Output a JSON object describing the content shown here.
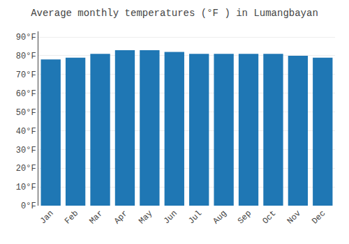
{
  "chart_data": {
    "type": "bar",
    "title": "Average monthly temperatures (°F ) in Lumangbayan",
    "categories": [
      "Jan",
      "Feb",
      "Mar",
      "Apr",
      "May",
      "Jun",
      "Jul",
      "Aug",
      "Sep",
      "Oct",
      "Nov",
      "Dec"
    ],
    "values": [
      78,
      79,
      81,
      83,
      83,
      82,
      81,
      81,
      81,
      81,
      80,
      79
    ],
    "ylim": [
      0,
      93
    ],
    "yticks": [
      {
        "value": 0,
        "label": "0°F"
      },
      {
        "value": 10,
        "label": "10°F"
      },
      {
        "value": 20,
        "label": "20°F"
      },
      {
        "value": 30,
        "label": "30°F"
      },
      {
        "value": 40,
        "label": "40°F"
      },
      {
        "value": 50,
        "label": "50°F"
      },
      {
        "value": 60,
        "label": "60°F"
      },
      {
        "value": 70,
        "label": "70°F"
      },
      {
        "value": 80,
        "label": "80°F"
      },
      {
        "value": 90,
        "label": "90°F"
      }
    ],
    "grid": true
  }
}
